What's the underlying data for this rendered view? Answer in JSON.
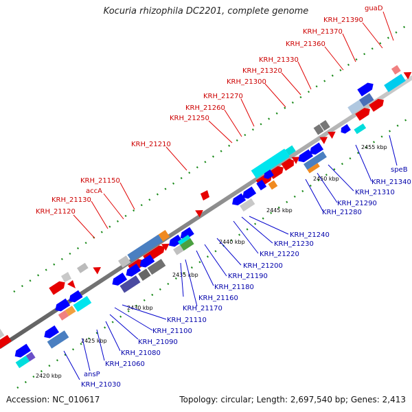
{
  "title": "Kocuria rhizophila DC2201, complete genome",
  "accession": "Accession: NC_010617",
  "info": "Topology: circular; Length: 2,697,540 bp; Genes: 2,413",
  "kbp_labels": [
    "2420 kbp",
    "2425 kbp",
    "2430 kbp",
    "2435 kbp",
    "2440 kbp",
    "2445 kbp",
    "2450 kbp",
    "2455 kbp"
  ],
  "upper_labels": [
    "KRH_21120",
    "KRH_21130",
    "accA",
    "KRH_21150",
    "KRH_21210",
    "KRH_21250",
    "KRH_21260",
    "KRH_21270",
    "KRH_21300",
    "KRH_21320",
    "KRH_21330",
    "KRH_21360",
    "KRH_21370",
    "KRH_21390",
    "guaD"
  ],
  "lower_labels": [
    "KRH_21030",
    "ansP",
    "KRH_21060",
    "KRH_21080",
    "KRH_21090",
    "KRH_21100",
    "KRH_21110",
    "KRH_21160",
    "KRH_21170",
    "KRH_21180",
    "KRH_21190",
    "KRH_21200",
    "KRH_21220",
    "KRH_21230",
    "KRH_21240",
    "KRH_21280",
    "KRH_21290",
    "KRH_21310",
    "KRH_21340",
    "speB"
  ],
  "colors": {
    "forward_label": "#cc0000",
    "reverse_label": "#0000aa",
    "backbone": "#888888"
  }
}
